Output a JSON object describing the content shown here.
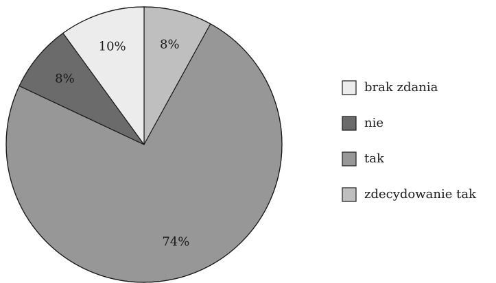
{
  "chart_data": {
    "type": "pie",
    "title": "",
    "legend_position": "right",
    "start_angle": "12 o'clock, clockwise",
    "slices": [
      {
        "label": "zdecydowanie tak",
        "value": 8,
        "display": "8%",
        "color": "#bfbfbf"
      },
      {
        "label": "tak",
        "value": 74,
        "display": "74%",
        "color": "#979797"
      },
      {
        "label": "nie",
        "value": 8,
        "display": "8%",
        "color": "#6b6b6b"
      },
      {
        "label": "brak zdania",
        "value": 10,
        "display": "10%",
        "color": "#ececec"
      }
    ],
    "legend_order": [
      "brak zdania",
      "nie",
      "tak",
      "zdecydowanie tak"
    ]
  }
}
